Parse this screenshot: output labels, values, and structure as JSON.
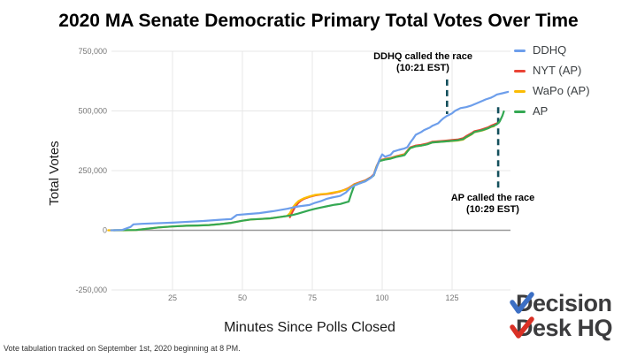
{
  "footnote": "Vote tabulation tracked on September 1st, 2020 beginning at 8 PM.",
  "logo": {
    "line1": "Decision",
    "line2": "Desk HQ",
    "text_color": "#3c3c3e",
    "check1_color": "#3c6fc4",
    "check2_color": "#d93025"
  },
  "chart_data": {
    "type": "line",
    "title": "2020 MA Senate Democratic Primary Total Votes Over Time",
    "xlabel": "Minutes Since Polls Closed",
    "ylabel": "Total Votes",
    "xlim": [
      0,
      145
    ],
    "ylim": [
      -250000,
      750000
    ],
    "grid": true,
    "legend_position": "top-right",
    "x_tick_values": [
      25,
      50,
      75,
      100,
      125
    ],
    "x_tick_labels": [
      "25",
      "50",
      "75",
      "100",
      "125"
    ],
    "y_tick_values": [
      750000,
      500000,
      250000,
      0,
      -250000
    ],
    "y_tick_labels": [
      "750,000",
      "500,000",
      "250,000",
      "0",
      "-250,000"
    ],
    "colors": {
      "gridline": "#e7e7e7",
      "zero_line": "#999999",
      "tick_label": "#757575",
      "annotation_line": "#134f5c"
    },
    "annotations": [
      {
        "text1": "DDHQ called the race",
        "text2": "(10:21 EST)",
        "minute": 123.2,
        "line_from_votes": 632000,
        "line_to_votes": 487000,
        "color": "#134f5c"
      },
      {
        "text1": "AP called the race",
        "text2": "(10:29 EST)",
        "minute": 141.5,
        "line_from_votes": 516000,
        "line_to_votes": 168000,
        "color": "#134f5c"
      }
    ],
    "series": [
      {
        "name": "DDHQ",
        "color": "#6d9eeb",
        "points": [
          [
            3,
            0
          ],
          [
            7,
            1000
          ],
          [
            10,
            14000
          ],
          [
            11,
            25000
          ],
          [
            14,
            27000
          ],
          [
            18,
            29000
          ],
          [
            25,
            32000
          ],
          [
            31,
            36000
          ],
          [
            36,
            39000
          ],
          [
            42,
            44000
          ],
          [
            46,
            47000
          ],
          [
            48,
            64000
          ],
          [
            52,
            68000
          ],
          [
            56,
            72000
          ],
          [
            61,
            80000
          ],
          [
            66,
            90000
          ],
          [
            70,
            100000
          ],
          [
            74,
            106000
          ],
          [
            76,
            115000
          ],
          [
            78,
            122000
          ],
          [
            80,
            131000
          ],
          [
            82,
            137000
          ],
          [
            85,
            144000
          ],
          [
            87,
            158000
          ],
          [
            88,
            170000
          ],
          [
            89,
            180000
          ],
          [
            90,
            187000
          ],
          [
            92,
            197000
          ],
          [
            94,
            205000
          ],
          [
            96,
            220000
          ],
          [
            97,
            232000
          ],
          [
            98,
            262000
          ],
          [
            99,
            295000
          ],
          [
            100,
            318000
          ],
          [
            101,
            308000
          ],
          [
            103,
            316000
          ],
          [
            104,
            330000
          ],
          [
            106,
            337000
          ],
          [
            108,
            343000
          ],
          [
            109,
            348000
          ],
          [
            110,
            367000
          ],
          [
            111,
            383000
          ],
          [
            112,
            400000
          ],
          [
            114,
            412000
          ],
          [
            115,
            420000
          ],
          [
            117,
            430000
          ],
          [
            118,
            438000
          ],
          [
            120,
            448000
          ],
          [
            121,
            460000
          ],
          [
            122,
            470000
          ],
          [
            123,
            478000
          ],
          [
            125,
            490000
          ],
          [
            126,
            500000
          ],
          [
            128,
            512000
          ],
          [
            130,
            516000
          ],
          [
            132,
            523000
          ],
          [
            134,
            533000
          ],
          [
            136,
            543000
          ],
          [
            137,
            548000
          ],
          [
            139,
            556000
          ],
          [
            140,
            562000
          ],
          [
            141,
            569000
          ],
          [
            143,
            574000
          ],
          [
            145,
            580000
          ]
        ]
      },
      {
        "name": "NYT (AP)",
        "color": "#ea4335",
        "points": [
          [
            67,
            55000
          ],
          [
            68,
            80000
          ],
          [
            69,
            100000
          ],
          [
            70,
            115000
          ],
          [
            71,
            125000
          ],
          [
            72,
            132000
          ],
          [
            74,
            140000
          ],
          [
            76,
            146000
          ],
          [
            78,
            150000
          ],
          [
            80,
            152000
          ],
          [
            82,
            155000
          ],
          [
            84,
            160000
          ],
          [
            85,
            163000
          ],
          [
            87,
            172000
          ],
          [
            88,
            177000
          ],
          [
            89,
            185000
          ],
          [
            90,
            193000
          ],
          [
            92,
            201000
          ],
          [
            94,
            209000
          ],
          [
            96,
            223000
          ],
          [
            97,
            234000
          ],
          [
            98,
            268000
          ],
          [
            99,
            293000
          ],
          [
            101,
            299000
          ],
          [
            103,
            303000
          ],
          [
            105,
            310000
          ],
          [
            107,
            316000
          ],
          [
            108,
            319000
          ],
          [
            109,
            333000
          ],
          [
            110,
            347000
          ],
          [
            112,
            355000
          ],
          [
            114,
            358000
          ],
          [
            116,
            363000
          ],
          [
            118,
            371000
          ],
          [
            120,
            373000
          ],
          [
            122,
            375000
          ],
          [
            125,
            378000
          ],
          [
            127,
            380000
          ],
          [
            129,
            386000
          ],
          [
            130,
            394000
          ],
          [
            132,
            407000
          ],
          [
            133,
            415000
          ],
          [
            135,
            420000
          ],
          [
            136,
            424000
          ],
          [
            138,
            432000
          ],
          [
            139,
            438000
          ],
          [
            140,
            443000
          ],
          [
            141,
            448000
          ]
        ]
      },
      {
        "name": "WaPo (AP)",
        "color": "#fbbc04",
        "points": [
          [
            2,
            0
          ],
          [
            8,
            0
          ],
          [
            12,
            1000
          ],
          [
            15,
            5000
          ],
          [
            20,
            12000
          ],
          [
            25,
            16000
          ],
          [
            30,
            19000
          ],
          [
            34,
            20000
          ],
          [
            38,
            22000
          ],
          [
            42,
            26000
          ],
          [
            46,
            31000
          ],
          [
            50,
            40000
          ],
          [
            53,
            45000
          ],
          [
            56,
            47000
          ],
          [
            60,
            50000
          ],
          [
            63,
            55000
          ],
          [
            66,
            60000
          ],
          [
            67,
            72000
          ],
          [
            68,
            95000
          ],
          [
            69,
            110000
          ],
          [
            70,
            122000
          ],
          [
            71,
            128000
          ],
          [
            72,
            134000
          ],
          [
            74,
            142000
          ],
          [
            76,
            148000
          ],
          [
            78,
            151000
          ],
          [
            80,
            153000
          ],
          [
            82,
            157000
          ],
          [
            84,
            161000
          ],
          [
            85,
            164000
          ],
          [
            87,
            170000
          ],
          [
            88,
            175000
          ],
          [
            89,
            183000
          ],
          [
            90,
            191000
          ],
          [
            92,
            199000
          ],
          [
            94,
            207000
          ],
          [
            96,
            221000
          ],
          [
            97,
            231000
          ],
          [
            98,
            266000
          ],
          [
            99,
            291000
          ],
          [
            101,
            297000
          ],
          [
            103,
            301000
          ],
          [
            105,
            308000
          ],
          [
            107,
            314000
          ],
          [
            108,
            317000
          ],
          [
            109,
            331000
          ],
          [
            110,
            344000
          ],
          [
            112,
            352000
          ],
          [
            114,
            355000
          ],
          [
            116,
            360000
          ],
          [
            118,
            368000
          ],
          [
            120,
            370000
          ],
          [
            122,
            372000
          ],
          [
            125,
            374000
          ],
          [
            127,
            376000
          ],
          [
            129,
            380000
          ],
          [
            130,
            389000
          ],
          [
            132,
            402000
          ],
          [
            133,
            411000
          ],
          [
            135,
            416000
          ],
          [
            136,
            419000
          ],
          [
            137,
            423000
          ],
          [
            138,
            428000
          ],
          [
            139,
            433000
          ],
          [
            140,
            436000
          ]
        ]
      },
      {
        "name": "AP",
        "color": "#34a853",
        "points": [
          [
            4,
            0
          ],
          [
            12,
            1000
          ],
          [
            15,
            5000
          ],
          [
            20,
            12000
          ],
          [
            25,
            16000
          ],
          [
            30,
            19000
          ],
          [
            34,
            20000
          ],
          [
            38,
            22000
          ],
          [
            42,
            26000
          ],
          [
            46,
            31000
          ],
          [
            50,
            40000
          ],
          [
            53,
            45000
          ],
          [
            56,
            47000
          ],
          [
            60,
            50000
          ],
          [
            63,
            55000
          ],
          [
            66,
            60000
          ],
          [
            68,
            64000
          ],
          [
            70,
            70000
          ],
          [
            72,
            77000
          ],
          [
            74,
            84000
          ],
          [
            76,
            90000
          ],
          [
            78,
            95000
          ],
          [
            80,
            100000
          ],
          [
            83,
            107000
          ],
          [
            85,
            110000
          ],
          [
            87,
            117000
          ],
          [
            88,
            120000
          ],
          [
            89,
            155000
          ],
          [
            90,
            188000
          ],
          [
            92,
            197000
          ],
          [
            94,
            206000
          ],
          [
            96,
            221000
          ],
          [
            97,
            230000
          ],
          [
            98,
            265000
          ],
          [
            99,
            290000
          ],
          [
            101,
            296000
          ],
          [
            103,
            300000
          ],
          [
            105,
            307000
          ],
          [
            107,
            312000
          ],
          [
            108,
            315000
          ],
          [
            109,
            330000
          ],
          [
            110,
            344000
          ],
          [
            112,
            352000
          ],
          [
            114,
            355000
          ],
          [
            116,
            360000
          ],
          [
            118,
            368000
          ],
          [
            120,
            370000
          ],
          [
            122,
            372000
          ],
          [
            125,
            375000
          ],
          [
            127,
            377000
          ],
          [
            129,
            382000
          ],
          [
            130,
            390000
          ],
          [
            132,
            403000
          ],
          [
            133,
            412000
          ],
          [
            135,
            417000
          ],
          [
            136,
            420000
          ],
          [
            138,
            428000
          ],
          [
            139,
            434000
          ],
          [
            140,
            438000
          ],
          [
            141,
            444000
          ],
          [
            142,
            455000
          ],
          [
            143,
            480000
          ],
          [
            143.5,
            498000
          ]
        ]
      }
    ]
  }
}
